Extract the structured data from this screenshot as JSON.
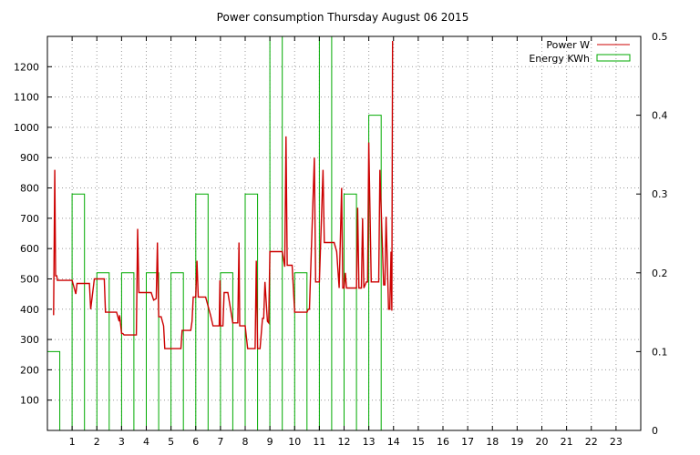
{
  "chart_data": {
    "type": "line",
    "title": "Power consumption Thursday August 06 2015",
    "xlabel": "",
    "ylabel": "",
    "x_range": [
      0,
      24
    ],
    "y_left_range": [
      0,
      1300
    ],
    "y_right_range": [
      0,
      0.5
    ],
    "x_ticks": [
      1,
      2,
      3,
      4,
      5,
      6,
      7,
      8,
      9,
      10,
      11,
      12,
      13,
      14,
      15,
      16,
      17,
      18,
      19,
      20,
      21,
      22,
      23
    ],
    "y_left_ticks": [
      100,
      200,
      300,
      400,
      500,
      600,
      700,
      800,
      900,
      1000,
      1100,
      1200
    ],
    "y_right_ticks": [
      0,
      0.1,
      0.2,
      0.3,
      0.4,
      0.5
    ],
    "grid": true,
    "legend_position": "top-right",
    "series": [
      {
        "name": "Power W",
        "axis": "left",
        "style": "line",
        "color": "#cc0000",
        "x": [
          0.25,
          0.3,
          0.33,
          0.38,
          0.4,
          0.45,
          0.6,
          0.8,
          1.0,
          1.15,
          1.2,
          1.7,
          1.75,
          1.9,
          2.0,
          2.3,
          2.35,
          2.8,
          2.9,
          2.92,
          3.0,
          3.05,
          3.1,
          3.2,
          3.6,
          3.65,
          3.7,
          3.72,
          3.75,
          4.0,
          4.2,
          4.3,
          4.4,
          4.45,
          4.5,
          4.55,
          4.6,
          4.7,
          4.75,
          4.8,
          5.0,
          5.2,
          5.4,
          5.45,
          5.5,
          5.8,
          5.85,
          5.9,
          6.0,
          6.05,
          6.1,
          6.2,
          6.4,
          6.6,
          6.7,
          6.95,
          6.98,
          7.0,
          7.1,
          7.15,
          7.3,
          7.5,
          7.55,
          7.7,
          7.75,
          7.78,
          7.8,
          8.0,
          8.1,
          8.2,
          8.4,
          8.45,
          8.5,
          8.6,
          8.7,
          8.75,
          8.8,
          8.9,
          8.95,
          9.0,
          9.1,
          9.5,
          9.6,
          9.65,
          9.7,
          9.9,
          10.0,
          10.5,
          10.55,
          10.6,
          10.8,
          10.85,
          10.9,
          11.0,
          11.15,
          11.2,
          11.25,
          11.4,
          11.6,
          11.7,
          11.8,
          11.9,
          11.95,
          12.0,
          12.05,
          12.1,
          12.5,
          12.55,
          12.6,
          12.7,
          12.75,
          12.8,
          12.9,
          12.95,
          13.0,
          13.1,
          13.4,
          13.45,
          13.6,
          13.65,
          13.7,
          13.8,
          13.85,
          13.9,
          13.93,
          13.96
        ],
        "y": [
          380,
          860,
          510,
          510,
          495,
          495,
          495,
          495,
          495,
          450,
          485,
          485,
          400,
          500,
          500,
          500,
          390,
          390,
          360,
          380,
          320,
          320,
          315,
          315,
          315,
          665,
          455,
          455,
          455,
          455,
          455,
          430,
          435,
          620,
          375,
          375,
          375,
          345,
          270,
          270,
          270,
          270,
          270,
          330,
          330,
          330,
          360,
          440,
          440,
          560,
          440,
          440,
          440,
          380,
          345,
          345,
          495,
          345,
          345,
          455,
          455,
          355,
          355,
          355,
          620,
          345,
          345,
          345,
          270,
          270,
          270,
          560,
          270,
          270,
          370,
          370,
          490,
          360,
          355,
          590,
          590,
          590,
          540,
          970,
          545,
          545,
          390,
          390,
          400,
          400,
          900,
          490,
          490,
          490,
          860,
          620,
          620,
          620,
          620,
          590,
          470,
          800,
          470,
          470,
          520,
          470,
          470,
          735,
          470,
          470,
          700,
          470,
          490,
          490,
          950,
          490,
          490,
          860,
          480,
          480,
          705,
          400,
          400,
          590,
          395,
          1285
        ]
      },
      {
        "name": "Energy KWh",
        "axis": "right",
        "style": "steps",
        "color": "#00aa00",
        "x": [
          0,
          0.5,
          1,
          1.5,
          2,
          2.5,
          3,
          3.5,
          4,
          4.5,
          5,
          5.5,
          6,
          6.5,
          7,
          7.5,
          8,
          8.5,
          9,
          9.5,
          10,
          10.5,
          11,
          11.5,
          12,
          12.5,
          13,
          13.5
        ],
        "y": [
          0.1,
          0,
          0.3,
          0,
          0.2,
          0,
          0.2,
          0,
          0.2,
          0,
          0.2,
          0,
          0.3,
          0,
          0.2,
          0,
          0.3,
          0,
          0.5,
          0,
          0.2,
          0,
          0.5,
          0,
          0.3,
          0,
          0.4,
          0
        ]
      }
    ]
  }
}
